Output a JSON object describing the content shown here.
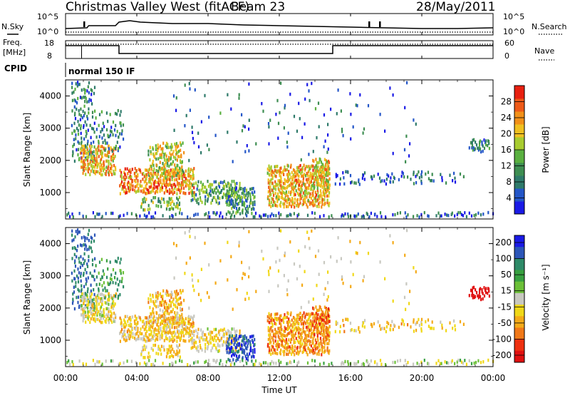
{
  "header": {
    "station": "Christmas Valley West (fitACF)",
    "beam": "Beam 23",
    "date": "28/May/2011"
  },
  "time_axis": {
    "label": "Time UT",
    "ticks": [
      "00:00",
      "04:00",
      "08:00",
      "12:00",
      "16:00",
      "20:00",
      "00:00"
    ]
  },
  "nsky_panel": {
    "left_label": "N.Sky",
    "right_label": "N.Search",
    "left_ticks": [
      "10^5",
      "10^0"
    ],
    "right_ticks": [
      "10^5",
      "10^0"
    ]
  },
  "freq_panel": {
    "left_label_line1": "Freq.",
    "left_label_line2": "[MHz]",
    "right_label": "Nave",
    "left_ticks": [
      "18",
      "8"
    ],
    "right_ticks": [
      "60",
      "0"
    ]
  },
  "cpid": {
    "label": "CPID",
    "value": "normal 150 IF"
  },
  "chart_data": [
    {
      "type": "heatmap",
      "quantity": "power",
      "xlabel": "Time UT",
      "ylabel": "Slant Range [km]",
      "xlim_hours": [
        0,
        24
      ],
      "ylim_km": [
        180,
        4500
      ],
      "y_ticks": [
        "1000",
        "2000",
        "3000",
        "4000"
      ],
      "colorbar": {
        "label": "Power [dB]",
        "ticks": [
          "4",
          "8",
          "12",
          "16",
          "20",
          "24",
          "28"
        ],
        "range": [
          0,
          32
        ]
      }
    },
    {
      "type": "heatmap",
      "quantity": "velocity",
      "xlabel": "Time UT",
      "ylabel": "Slant Range [km]",
      "xlim_hours": [
        0,
        24
      ],
      "ylim_km": [
        180,
        4500
      ],
      "y_ticks": [
        "1000",
        "2000",
        "3000",
        "4000"
      ],
      "colorbar": {
        "label": "Velocity [m s⁻¹]",
        "ticks": [
          "200",
          "100",
          "50",
          "15",
          "-15",
          "-50",
          "-100",
          "-200"
        ]
      }
    }
  ]
}
